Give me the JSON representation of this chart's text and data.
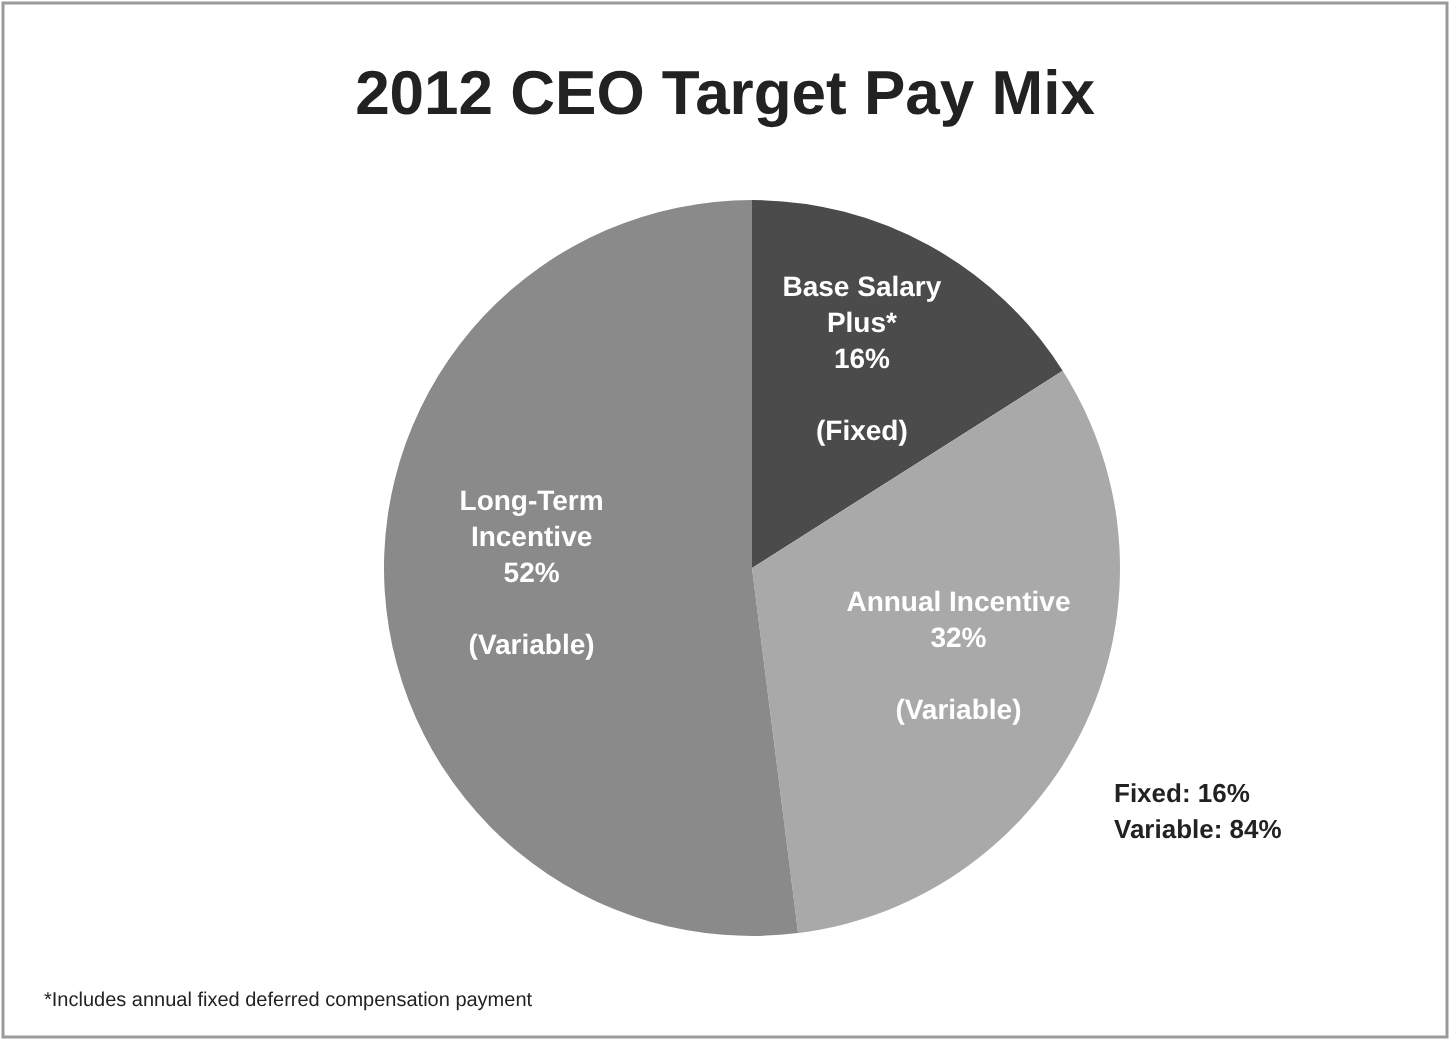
{
  "chart_data": {
    "type": "pie",
    "title": "2012 CEO Target Pay Mix",
    "categories": [
      "Base Salary\nPlus*",
      "Annual Incentive",
      "Long-Term\nIncentive"
    ],
    "values": [
      16,
      32,
      52
    ],
    "colors": [
      "#4b4b4b",
      "#a9a9a9",
      "#8a8a8a"
    ],
    "value_labels": [
      "16%",
      "32%",
      "52%"
    ],
    "annotations": [
      "(Fixed)",
      "(Variable)",
      "(Variable)",
      "Fixed: 16%\nVariable: 84%",
      "*Includes annual fixed deferred compensation payment"
    ]
  }
}
